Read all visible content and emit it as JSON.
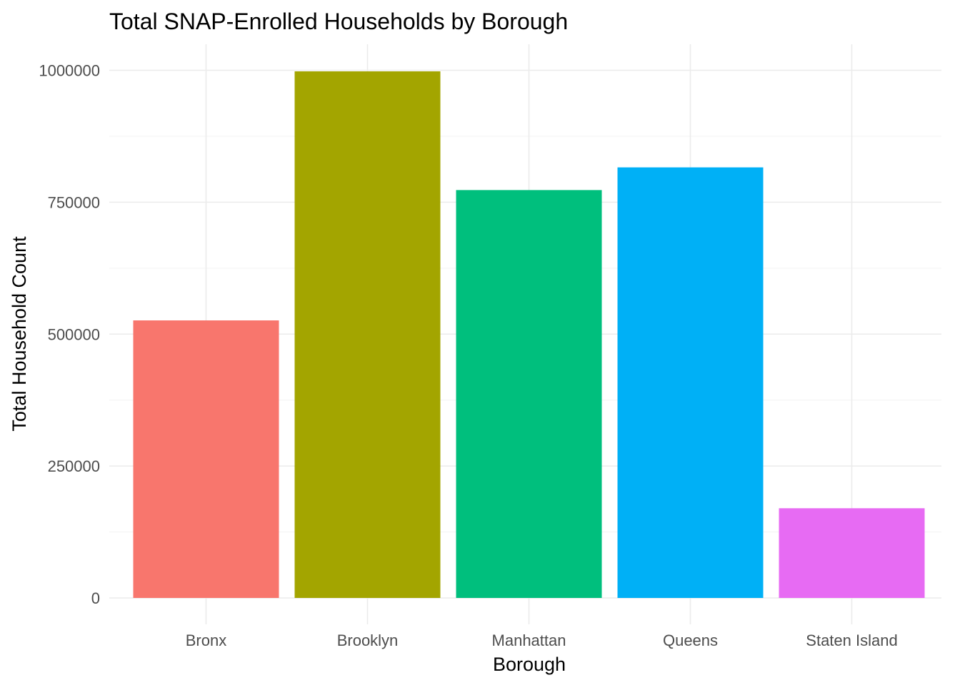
{
  "chart_data": {
    "type": "bar",
    "title": "Total SNAP-Enrolled Households by Borough",
    "xlabel": "Borough",
    "ylabel": "Total Household Count",
    "categories": [
      "Bronx",
      "Brooklyn",
      "Manhattan",
      "Queens",
      "Staten Island"
    ],
    "values": [
      526000,
      998000,
      773000,
      816000,
      170000
    ],
    "colors": [
      "#F8766D",
      "#A3A500",
      "#00BF7D",
      "#00B0F6",
      "#E76BF3"
    ],
    "ylim": [
      0,
      1050000
    ],
    "yticks": [
      0,
      250000,
      500000,
      750000,
      1000000
    ],
    "ytick_labels": [
      "0",
      "250000",
      "500000",
      "750000",
      "1000000"
    ],
    "grid": true,
    "legend": "none"
  }
}
